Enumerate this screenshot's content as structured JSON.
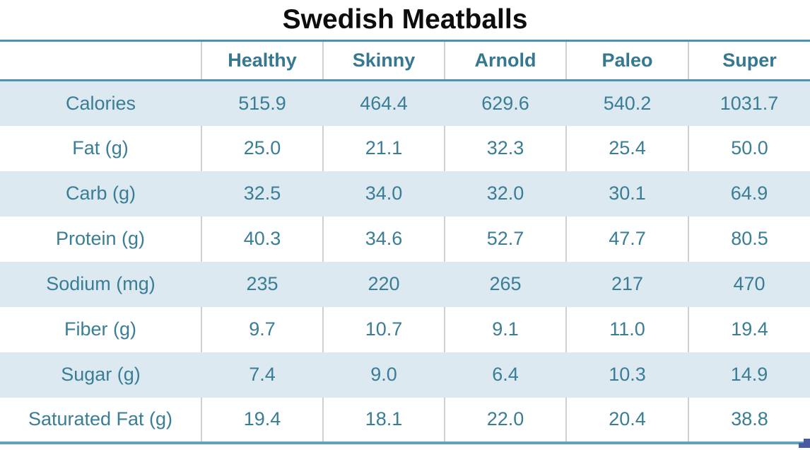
{
  "title": "Swedish Meatballs",
  "table": {
    "columns": [
      "",
      "Healthy",
      "Skinny",
      "Arnold",
      "Paleo",
      "Super"
    ],
    "rows": [
      {
        "label": "Calories",
        "values": [
          "515.9",
          "464.4",
          "629.6",
          "540.2",
          "1031.7"
        ]
      },
      {
        "label": "Fat (g)",
        "values": [
          "25.0",
          "21.1",
          "32.3",
          "25.4",
          "50.0"
        ]
      },
      {
        "label": "Carb (g)",
        "values": [
          "32.5",
          "34.0",
          "32.0",
          "30.1",
          "64.9"
        ]
      },
      {
        "label": "Protein (g)",
        "values": [
          "40.3",
          "34.6",
          "52.7",
          "47.7",
          "80.5"
        ]
      },
      {
        "label": "Sodium (mg)",
        "values": [
          "235",
          "220",
          "265",
          "217",
          "470"
        ]
      },
      {
        "label": "Fiber (g)",
        "values": [
          "9.7",
          "10.7",
          "9.1",
          "11.0",
          "19.4"
        ]
      },
      {
        "label": "Sugar (g)",
        "values": [
          "7.4",
          "9.0",
          "6.4",
          "10.3",
          "14.9"
        ]
      },
      {
        "label": "Saturated Fat (g)",
        "values": [
          "19.4",
          "18.1",
          "22.0",
          "20.4",
          "38.8"
        ]
      }
    ]
  },
  "colors": {
    "title_text": "#0d0d0d",
    "header_text": "#35788f",
    "cell_text": "#3a7d96",
    "band_fill": "#dce9f1",
    "border_teal_top": "#4e93ac",
    "border_teal_bottom": "#5fa4b8",
    "separator_gray": "#d0d0d0",
    "handle_blue": "#4a5aa0"
  },
  "chart_data": {
    "type": "table",
    "title": "Swedish Meatballs",
    "columns": [
      "Healthy",
      "Skinny",
      "Arnold",
      "Paleo",
      "Super"
    ],
    "row_labels": [
      "Calories",
      "Fat (g)",
      "Carb (g)",
      "Protein (g)",
      "Sodium (mg)",
      "Fiber (g)",
      "Sugar (g)",
      "Saturated Fat (g)"
    ],
    "series": [
      {
        "name": "Healthy",
        "values": [
          515.9,
          25.0,
          32.5,
          40.3,
          235,
          9.7,
          7.4,
          19.4
        ]
      },
      {
        "name": "Skinny",
        "values": [
          464.4,
          21.1,
          34.0,
          34.6,
          220,
          10.7,
          9.0,
          18.1
        ]
      },
      {
        "name": "Arnold",
        "values": [
          629.6,
          32.3,
          32.0,
          52.7,
          265,
          9.1,
          6.4,
          22.0
        ]
      },
      {
        "name": "Paleo",
        "values": [
          540.2,
          25.4,
          30.1,
          47.7,
          217,
          11.0,
          10.3,
          20.4
        ]
      },
      {
        "name": "Super",
        "values": [
          1031.7,
          50.0,
          64.9,
          80.5,
          470,
          19.4,
          14.9,
          38.8
        ]
      }
    ],
    "layout": {
      "banded_rows": true,
      "band_pattern": "odd-rows-shaded-starting-with-first",
      "values_alignment": "center"
    }
  }
}
